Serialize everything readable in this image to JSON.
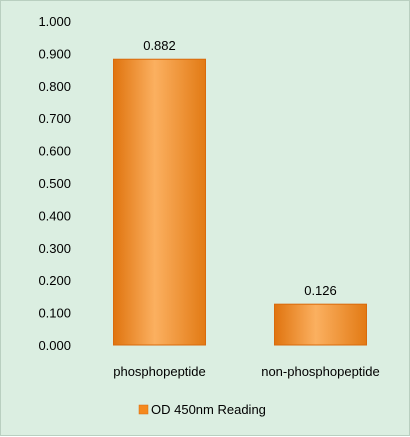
{
  "chart_data": {
    "type": "bar",
    "categories": [
      "phosphopeptide",
      "non-phosphopeptide"
    ],
    "series": [
      {
        "name": "OD 450nm Reading",
        "values": [
          0.882,
          0.126
        ]
      }
    ],
    "data_labels": [
      "0.882",
      "0.126"
    ],
    "yticks": [
      "0.000",
      "0.100",
      "0.200",
      "0.300",
      "0.400",
      "0.500",
      "0.600",
      "0.700",
      "0.800",
      "0.900",
      "1.000"
    ],
    "ylim": [
      0,
      1.0
    ],
    "grid": false,
    "legend_position": "bottom",
    "colors": {
      "bar": "#f5891e",
      "bar_light": "#fbb86a",
      "bar_dark": "#d96a0c",
      "background": "#dbeee1"
    }
  }
}
